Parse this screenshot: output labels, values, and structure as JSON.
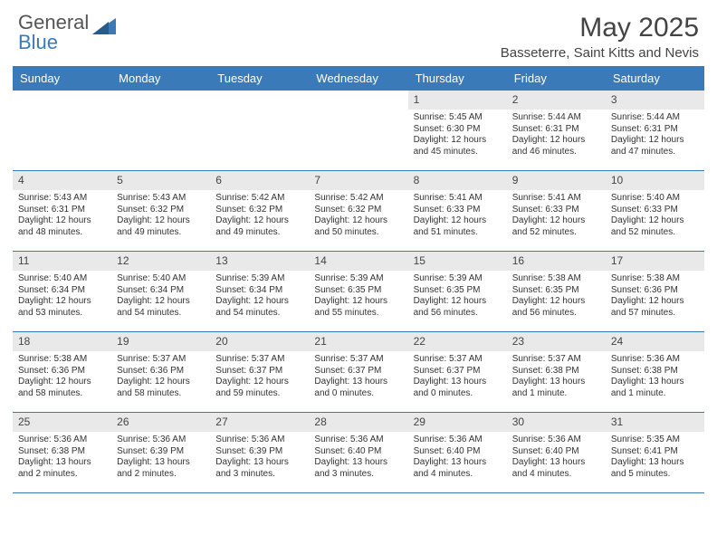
{
  "theme": {
    "accent": "#3a7ab8",
    "daynum_bg": "#e9e9e9",
    "text": "#333333",
    "title_color": "#444444"
  },
  "logo": {
    "general": "General",
    "blue": "Blue"
  },
  "title": "May 2025",
  "subtitle": "Basseterre, Saint Kitts and Nevis",
  "day_names": [
    "Sunday",
    "Monday",
    "Tuesday",
    "Wednesday",
    "Thursday",
    "Friday",
    "Saturday"
  ],
  "weeks": [
    [
      {
        "n": "",
        "sr": "",
        "ss": "",
        "dl": ""
      },
      {
        "n": "",
        "sr": "",
        "ss": "",
        "dl": ""
      },
      {
        "n": "",
        "sr": "",
        "ss": "",
        "dl": ""
      },
      {
        "n": "",
        "sr": "",
        "ss": "",
        "dl": ""
      },
      {
        "n": "1",
        "sr": "Sunrise: 5:45 AM",
        "ss": "Sunset: 6:30 PM",
        "dl": "Daylight: 12 hours and 45 minutes."
      },
      {
        "n": "2",
        "sr": "Sunrise: 5:44 AM",
        "ss": "Sunset: 6:31 PM",
        "dl": "Daylight: 12 hours and 46 minutes."
      },
      {
        "n": "3",
        "sr": "Sunrise: 5:44 AM",
        "ss": "Sunset: 6:31 PM",
        "dl": "Daylight: 12 hours and 47 minutes."
      }
    ],
    [
      {
        "n": "4",
        "sr": "Sunrise: 5:43 AM",
        "ss": "Sunset: 6:31 PM",
        "dl": "Daylight: 12 hours and 48 minutes."
      },
      {
        "n": "5",
        "sr": "Sunrise: 5:43 AM",
        "ss": "Sunset: 6:32 PM",
        "dl": "Daylight: 12 hours and 49 minutes."
      },
      {
        "n": "6",
        "sr": "Sunrise: 5:42 AM",
        "ss": "Sunset: 6:32 PM",
        "dl": "Daylight: 12 hours and 49 minutes."
      },
      {
        "n": "7",
        "sr": "Sunrise: 5:42 AM",
        "ss": "Sunset: 6:32 PM",
        "dl": "Daylight: 12 hours and 50 minutes."
      },
      {
        "n": "8",
        "sr": "Sunrise: 5:41 AM",
        "ss": "Sunset: 6:33 PM",
        "dl": "Daylight: 12 hours and 51 minutes."
      },
      {
        "n": "9",
        "sr": "Sunrise: 5:41 AM",
        "ss": "Sunset: 6:33 PM",
        "dl": "Daylight: 12 hours and 52 minutes."
      },
      {
        "n": "10",
        "sr": "Sunrise: 5:40 AM",
        "ss": "Sunset: 6:33 PM",
        "dl": "Daylight: 12 hours and 52 minutes."
      }
    ],
    [
      {
        "n": "11",
        "sr": "Sunrise: 5:40 AM",
        "ss": "Sunset: 6:34 PM",
        "dl": "Daylight: 12 hours and 53 minutes."
      },
      {
        "n": "12",
        "sr": "Sunrise: 5:40 AM",
        "ss": "Sunset: 6:34 PM",
        "dl": "Daylight: 12 hours and 54 minutes."
      },
      {
        "n": "13",
        "sr": "Sunrise: 5:39 AM",
        "ss": "Sunset: 6:34 PM",
        "dl": "Daylight: 12 hours and 54 minutes."
      },
      {
        "n": "14",
        "sr": "Sunrise: 5:39 AM",
        "ss": "Sunset: 6:35 PM",
        "dl": "Daylight: 12 hours and 55 minutes."
      },
      {
        "n": "15",
        "sr": "Sunrise: 5:39 AM",
        "ss": "Sunset: 6:35 PM",
        "dl": "Daylight: 12 hours and 56 minutes."
      },
      {
        "n": "16",
        "sr": "Sunrise: 5:38 AM",
        "ss": "Sunset: 6:35 PM",
        "dl": "Daylight: 12 hours and 56 minutes."
      },
      {
        "n": "17",
        "sr": "Sunrise: 5:38 AM",
        "ss": "Sunset: 6:36 PM",
        "dl": "Daylight: 12 hours and 57 minutes."
      }
    ],
    [
      {
        "n": "18",
        "sr": "Sunrise: 5:38 AM",
        "ss": "Sunset: 6:36 PM",
        "dl": "Daylight: 12 hours and 58 minutes."
      },
      {
        "n": "19",
        "sr": "Sunrise: 5:37 AM",
        "ss": "Sunset: 6:36 PM",
        "dl": "Daylight: 12 hours and 58 minutes."
      },
      {
        "n": "20",
        "sr": "Sunrise: 5:37 AM",
        "ss": "Sunset: 6:37 PM",
        "dl": "Daylight: 12 hours and 59 minutes."
      },
      {
        "n": "21",
        "sr": "Sunrise: 5:37 AM",
        "ss": "Sunset: 6:37 PM",
        "dl": "Daylight: 13 hours and 0 minutes."
      },
      {
        "n": "22",
        "sr": "Sunrise: 5:37 AM",
        "ss": "Sunset: 6:37 PM",
        "dl": "Daylight: 13 hours and 0 minutes."
      },
      {
        "n": "23",
        "sr": "Sunrise: 5:37 AM",
        "ss": "Sunset: 6:38 PM",
        "dl": "Daylight: 13 hours and 1 minute."
      },
      {
        "n": "24",
        "sr": "Sunrise: 5:36 AM",
        "ss": "Sunset: 6:38 PM",
        "dl": "Daylight: 13 hours and 1 minute."
      }
    ],
    [
      {
        "n": "25",
        "sr": "Sunrise: 5:36 AM",
        "ss": "Sunset: 6:38 PM",
        "dl": "Daylight: 13 hours and 2 minutes."
      },
      {
        "n": "26",
        "sr": "Sunrise: 5:36 AM",
        "ss": "Sunset: 6:39 PM",
        "dl": "Daylight: 13 hours and 2 minutes."
      },
      {
        "n": "27",
        "sr": "Sunrise: 5:36 AM",
        "ss": "Sunset: 6:39 PM",
        "dl": "Daylight: 13 hours and 3 minutes."
      },
      {
        "n": "28",
        "sr": "Sunrise: 5:36 AM",
        "ss": "Sunset: 6:40 PM",
        "dl": "Daylight: 13 hours and 3 minutes."
      },
      {
        "n": "29",
        "sr": "Sunrise: 5:36 AM",
        "ss": "Sunset: 6:40 PM",
        "dl": "Daylight: 13 hours and 4 minutes."
      },
      {
        "n": "30",
        "sr": "Sunrise: 5:36 AM",
        "ss": "Sunset: 6:40 PM",
        "dl": "Daylight: 13 hours and 4 minutes."
      },
      {
        "n": "31",
        "sr": "Sunrise: 5:35 AM",
        "ss": "Sunset: 6:41 PM",
        "dl": "Daylight: 13 hours and 5 minutes."
      }
    ]
  ]
}
